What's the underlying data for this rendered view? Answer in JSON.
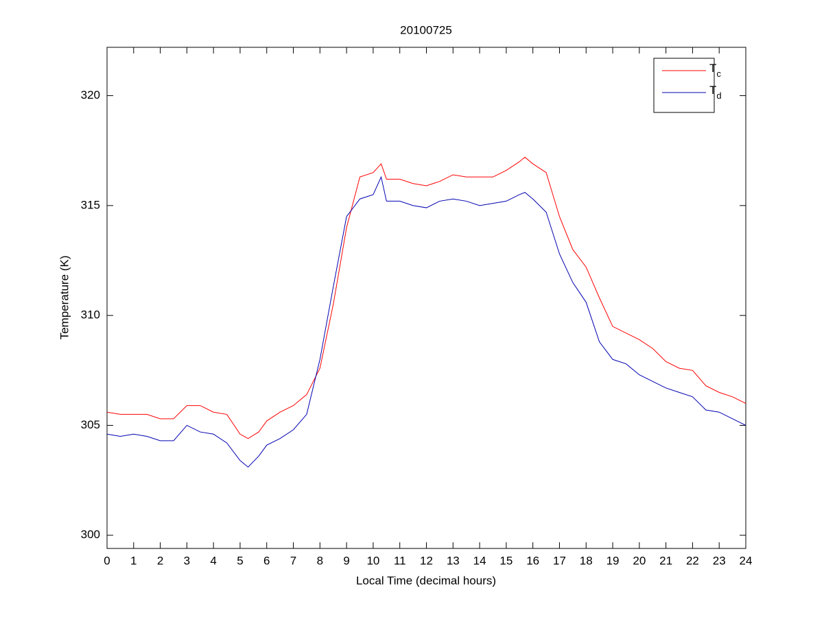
{
  "chart_data": {
    "type": "line",
    "title": "20100725",
    "xlabel": "Local Time (decimal hours)",
    "ylabel": "Temperature (K)",
    "x": [
      0,
      0.5,
      1,
      1.5,
      2,
      2.5,
      3,
      3.5,
      4,
      4.5,
      5,
      5.3,
      5.7,
      6,
      6.5,
      7,
      7.5,
      8,
      8.5,
      9,
      9.5,
      10,
      10.3,
      10.5,
      11,
      11.5,
      12,
      12.5,
      13,
      13.5,
      14,
      14.5,
      15,
      15.5,
      15.7,
      16,
      16.5,
      17,
      17.5,
      18,
      18.5,
      19,
      19.5,
      20,
      20.5,
      21,
      21.5,
      22,
      22.5,
      23,
      23.5,
      24
    ],
    "series": [
      {
        "name": "Tc",
        "color": "#ff0000",
        "values": [
          305.6,
          305.5,
          305.5,
          305.5,
          305.3,
          305.3,
          305.9,
          305.9,
          305.6,
          305.5,
          304.6,
          304.4,
          304.7,
          305.2,
          305.6,
          305.9,
          306.4,
          307.6,
          310.5,
          314.0,
          316.3,
          316.5,
          316.9,
          316.2,
          316.2,
          316.0,
          315.9,
          316.1,
          316.4,
          316.3,
          316.3,
          316.3,
          316.6,
          317.0,
          317.2,
          316.9,
          316.5,
          314.5,
          313.0,
          312.2,
          310.8,
          309.5,
          309.2,
          308.9,
          308.5,
          307.9,
          307.6,
          307.5,
          306.8,
          306.5,
          306.3,
          306.0
        ]
      },
      {
        "name": "Td",
        "color": "#0000b0",
        "values": [
          304.6,
          304.5,
          304.6,
          304.5,
          304.3,
          304.3,
          305.0,
          304.7,
          304.6,
          304.2,
          303.4,
          303.1,
          303.6,
          304.1,
          304.4,
          304.8,
          305.5,
          308.0,
          311.3,
          314.5,
          315.3,
          315.5,
          316.3,
          315.2,
          315.2,
          315.0,
          314.9,
          315.2,
          315.3,
          315.2,
          315.0,
          315.1,
          315.2,
          315.5,
          315.6,
          315.3,
          314.7,
          312.8,
          311.5,
          310.6,
          308.8,
          308.0,
          307.8,
          307.3,
          307.0,
          306.7,
          306.5,
          306.3,
          305.7,
          305.6,
          305.3,
          305.0
        ]
      }
    ],
    "xlim": [
      0,
      24
    ],
    "xticks": [
      0,
      1,
      2,
      3,
      4,
      5,
      6,
      7,
      8,
      9,
      10,
      11,
      12,
      13,
      14,
      15,
      16,
      17,
      18,
      19,
      20,
      21,
      22,
      23,
      24
    ],
    "ylim": [
      299.4,
      322.2
    ],
    "yticks": [
      300,
      305,
      310,
      315,
      320
    ],
    "grid": false,
    "legend": "northeast"
  }
}
